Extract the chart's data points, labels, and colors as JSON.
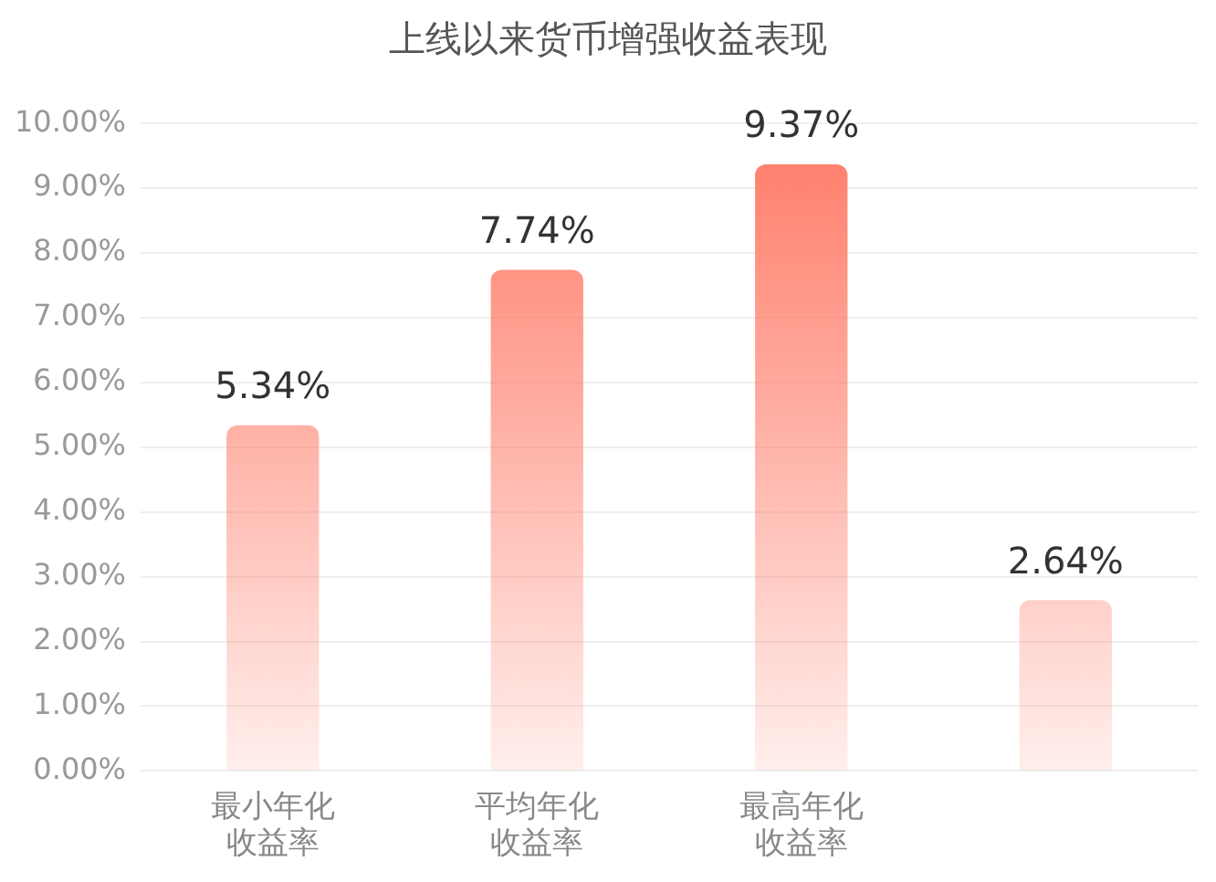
{
  "chart_data": {
    "type": "bar",
    "title": "上线以来货币增强收益表现",
    "categories": [
      "最小年化收益率",
      "平均年化收益率",
      "最高年化收益率",
      null
    ],
    "values": [
      5.34,
      7.74,
      9.37,
      2.64
    ],
    "color": "#ff7a66",
    "ylim": [
      0,
      10
    ],
    "yticks": [
      {
        "value": 0,
        "label": "0.00%"
      },
      {
        "value": 1,
        "label": "1.00%"
      },
      {
        "value": 2,
        "label": "2.00%"
      },
      {
        "value": 3,
        "label": "3.00%"
      },
      {
        "value": 4,
        "label": "4.00%"
      },
      {
        "value": 5,
        "label": "5.00%"
      },
      {
        "value": 6,
        "label": "6.00%"
      },
      {
        "value": 7,
        "label": "7.00%"
      },
      {
        "value": 8,
        "label": "8.00%"
      },
      {
        "value": 9,
        "label": "9.00%"
      },
      {
        "value": 10,
        "label": "10.00%"
      }
    ],
    "value_labels": [
      "5.34%",
      "7.74%",
      "9.37%",
      "2.64%"
    ],
    "grid": "y",
    "legend": false
  }
}
